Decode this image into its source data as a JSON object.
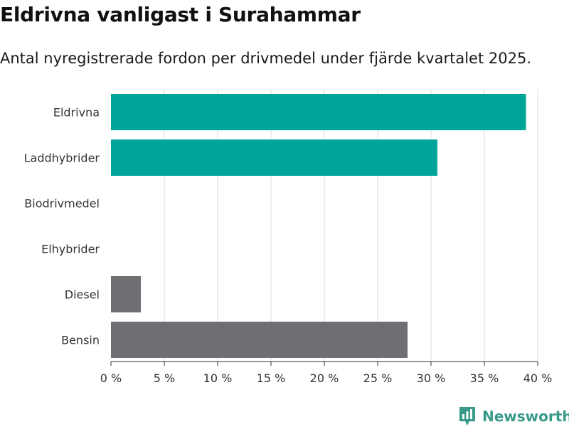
{
  "chart_data": {
    "type": "bar",
    "orientation": "horizontal",
    "title": "Eldrivna vanligast i Surahammar",
    "subtitle": "Antal nyregistrerade fordon per drivmedel under fjärde kvartalet 2025.",
    "categories": [
      "Eldrivna",
      "Laddhybrider",
      "Biodrivmedel",
      "Elhybrider",
      "Diesel",
      "Bensin"
    ],
    "values": [
      38.9,
      30.6,
      0,
      0,
      2.8,
      27.8
    ],
    "colors": [
      "#00a59a",
      "#00a59a",
      "#00a59a",
      "#6f6e73",
      "#6f6e73",
      "#6f6e73"
    ],
    "xlim": [
      0,
      40
    ],
    "xticks": [
      0,
      5,
      10,
      15,
      20,
      25,
      30,
      35,
      40
    ],
    "xtick_labels": [
      "0 %",
      "5 %",
      "10 %",
      "15 %",
      "20 %",
      "25 %",
      "30 %",
      "35 %",
      "40 %"
    ],
    "xlabel": "",
    "ylabel": "",
    "unit": "%",
    "grid": true
  },
  "brand": {
    "name": "Newsworthy",
    "icon": "bar-chart-logo-icon",
    "color": "#3a9a8a"
  }
}
